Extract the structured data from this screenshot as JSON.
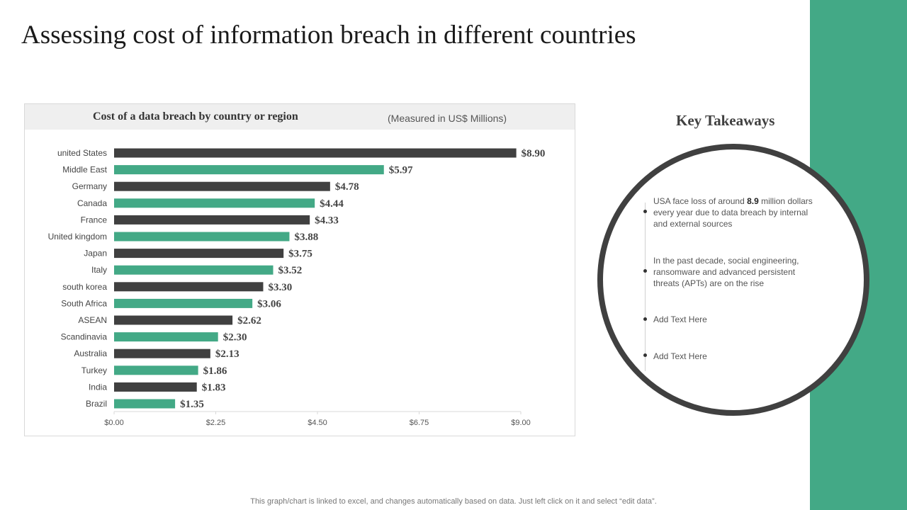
{
  "page": {
    "title": "Assessing cost of information breach in different countries",
    "footnote": "This graph/chart is linked to excel, and changes automatically based on data. Just left click on it and select “edit data”."
  },
  "colors": {
    "dark_bar": "#404040",
    "green_bar": "#43a986",
    "accent_band": "#43a986",
    "ring": "#404040"
  },
  "chart_data": {
    "type": "bar",
    "orientation": "horizontal",
    "title": "Cost of a data breach by country or region",
    "subtitle": "(Measured  in US$ Millions)",
    "categories": [
      "united States",
      "Middle East",
      "Germany",
      "Canada",
      "France",
      "United kingdom",
      "Japan",
      "Italy",
      "south korea",
      "South Africa",
      "ASEAN",
      "Scandinavia",
      "Australia",
      "Turkey",
      "India",
      "Brazil"
    ],
    "values": [
      8.9,
      5.97,
      4.78,
      4.44,
      4.33,
      3.88,
      3.75,
      3.52,
      3.3,
      3.06,
      2.62,
      2.3,
      2.13,
      1.86,
      1.83,
      1.35
    ],
    "value_labels": [
      "$8.90",
      "$5.97",
      "$4.78",
      "$4.44",
      "$4.33",
      "$3.88",
      "$3.75",
      "$3.52",
      "$3.30",
      "$3.06",
      "$2.62",
      "$2.30",
      "$2.13",
      "$1.86",
      "$1.83",
      "$1.35"
    ],
    "xlim": [
      0,
      9
    ],
    "x_ticks": [
      0,
      2.25,
      4.5,
      6.75,
      9
    ],
    "x_tick_labels": [
      "$0.00",
      "$2.25",
      "$4.50",
      "$6.75",
      "$9.00"
    ],
    "bar_colors": [
      "#404040",
      "#43a986",
      "#404040",
      "#43a986",
      "#404040",
      "#43a986",
      "#404040",
      "#43a986",
      "#404040",
      "#43a986",
      "#404040",
      "#43a986",
      "#404040",
      "#43a986",
      "#404040",
      "#43a986"
    ],
    "grid": false,
    "xlabel": "",
    "ylabel": ""
  },
  "takeaways": {
    "title": "Key Takeaways",
    "items": [
      {
        "pre": "USA face loss of around ",
        "bold": "8.9",
        "post": " million dollars every year due to data breach by internal and external sources"
      },
      {
        "text": "In the past decade, social engineering, ransomware and advanced persistent threats (APTs) are on the rise"
      },
      {
        "text": "Add Text Here"
      },
      {
        "text": "Add Text Here"
      }
    ]
  }
}
